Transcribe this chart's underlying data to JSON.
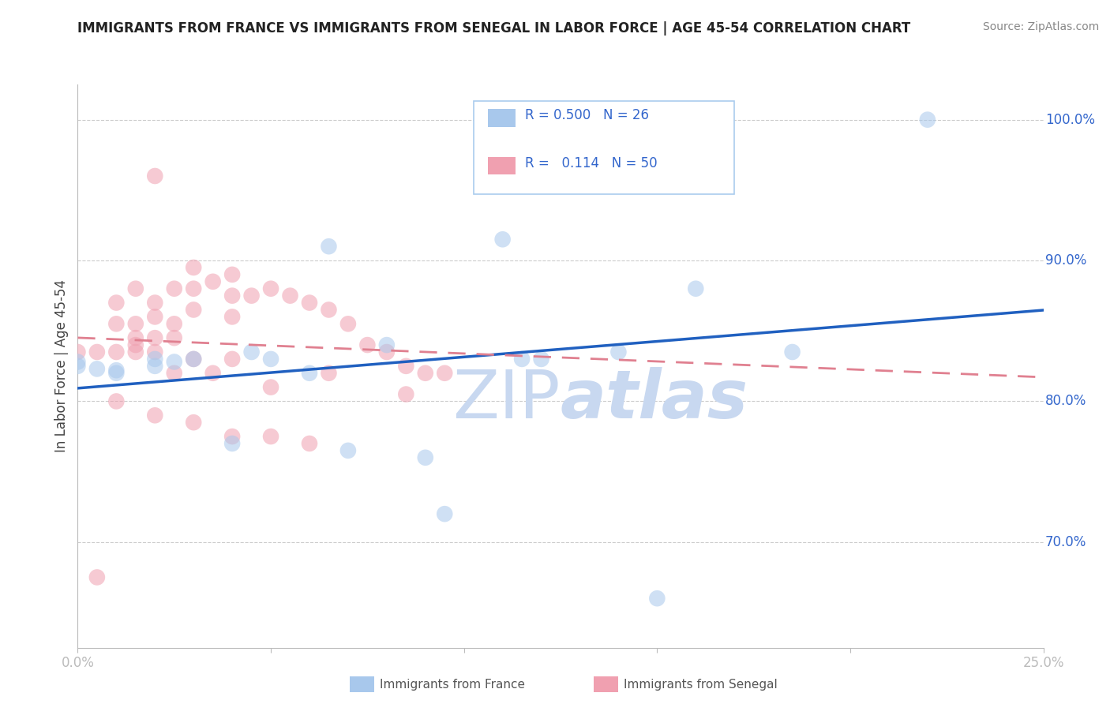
{
  "title": "IMMIGRANTS FROM FRANCE VS IMMIGRANTS FROM SENEGAL IN LABOR FORCE | AGE 45-54 CORRELATION CHART",
  "source": "Source: ZipAtlas.com",
  "ylabel": "In Labor Force | Age 45-54",
  "xlim": [
    0.0,
    0.25
  ],
  "ylim": [
    0.625,
    1.025
  ],
  "france_R": 0.5,
  "france_N": 26,
  "senegal_R": 0.114,
  "senegal_N": 50,
  "france_color": "#A8C8EC",
  "senegal_color": "#F0A0B0",
  "france_line_color": "#2060C0",
  "senegal_line_color": "#E08090",
  "watermark_color": "#C8D8F0",
  "legend_R_color": "#3366CC",
  "france_x": [
    0.0,
    0.0,
    0.005,
    0.01,
    0.01,
    0.02,
    0.02,
    0.025,
    0.03,
    0.04,
    0.045,
    0.05,
    0.06,
    0.065,
    0.07,
    0.09,
    0.095,
    0.11,
    0.115,
    0.14,
    0.16,
    0.185,
    0.22,
    0.12,
    0.08,
    0.15
  ],
  "france_y": [
    0.828,
    0.825,
    0.823,
    0.822,
    0.82,
    0.83,
    0.825,
    0.828,
    0.83,
    0.77,
    0.835,
    0.83,
    0.82,
    0.91,
    0.765,
    0.76,
    0.72,
    0.915,
    0.83,
    0.835,
    0.88,
    0.835,
    1.0,
    0.83,
    0.84,
    0.66
  ],
  "senegal_x": [
    0.0,
    0.005,
    0.005,
    0.01,
    0.01,
    0.01,
    0.015,
    0.015,
    0.015,
    0.015,
    0.02,
    0.02,
    0.02,
    0.02,
    0.02,
    0.025,
    0.025,
    0.03,
    0.03,
    0.03,
    0.035,
    0.035,
    0.04,
    0.04,
    0.04,
    0.045,
    0.05,
    0.05,
    0.055,
    0.06,
    0.065,
    0.065,
    0.07,
    0.075,
    0.08,
    0.085,
    0.085,
    0.09,
    0.095,
    0.01,
    0.02,
    0.03,
    0.04,
    0.05,
    0.06,
    0.025,
    0.03,
    0.04,
    0.025,
    0.015
  ],
  "senegal_y": [
    0.835,
    0.835,
    0.675,
    0.87,
    0.855,
    0.835,
    0.88,
    0.855,
    0.845,
    0.835,
    0.96,
    0.87,
    0.86,
    0.845,
    0.835,
    0.88,
    0.855,
    0.895,
    0.88,
    0.865,
    0.885,
    0.82,
    0.89,
    0.875,
    0.86,
    0.875,
    0.88,
    0.81,
    0.875,
    0.87,
    0.865,
    0.82,
    0.855,
    0.84,
    0.835,
    0.825,
    0.805,
    0.82,
    0.82,
    0.8,
    0.79,
    0.785,
    0.775,
    0.775,
    0.77,
    0.845,
    0.83,
    0.83,
    0.82,
    0.84
  ]
}
